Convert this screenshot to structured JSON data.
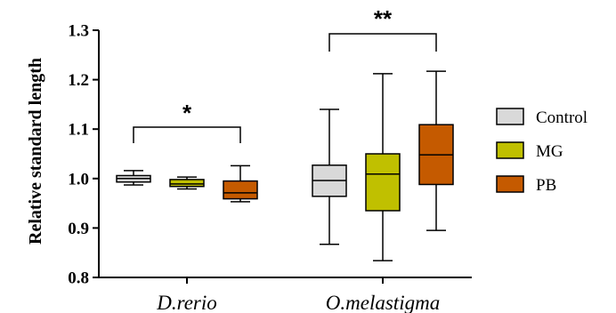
{
  "chart_data": {
    "type": "box",
    "ylabel": "Relative standard length",
    "ylim": [
      0.8,
      1.3
    ],
    "yticks": [
      "0.8",
      "0.9",
      "1.0",
      "1.1",
      "1.2",
      "1.3"
    ],
    "categories": [
      "D.rerio",
      "O.melastigma"
    ],
    "series": [
      {
        "name": "Control",
        "color": "#d9d9d9",
        "boxes": [
          {
            "min": 0.987,
            "q1": 0.993,
            "median": 1.0,
            "q3": 1.006,
            "max": 1.016
          },
          {
            "min": 0.867,
            "q1": 0.964,
            "median": 0.996,
            "q3": 1.027,
            "max": 1.14
          }
        ]
      },
      {
        "name": "MG",
        "color": "#c0c000",
        "boxes": [
          {
            "min": 0.979,
            "q1": 0.984,
            "median": 0.989,
            "q3": 0.998,
            "max": 1.003
          },
          {
            "min": 0.834,
            "q1": 0.935,
            "median": 1.009,
            "q3": 1.05,
            "max": 1.212
          }
        ]
      },
      {
        "name": "PB",
        "color": "#c55a00",
        "boxes": [
          {
            "min": 0.953,
            "q1": 0.959,
            "median": 0.971,
            "q3": 0.995,
            "max": 1.026
          },
          {
            "min": 0.895,
            "q1": 0.988,
            "median": 1.048,
            "q3": 1.109,
            "max": 1.217
          }
        ]
      }
    ],
    "annotations": [
      {
        "category": "D.rerio",
        "from": "Control",
        "to": "PB",
        "label": "*"
      },
      {
        "category": "O.melastigma",
        "from": "Control",
        "to": "PB",
        "label": "**"
      }
    ],
    "legend_position": "right"
  }
}
